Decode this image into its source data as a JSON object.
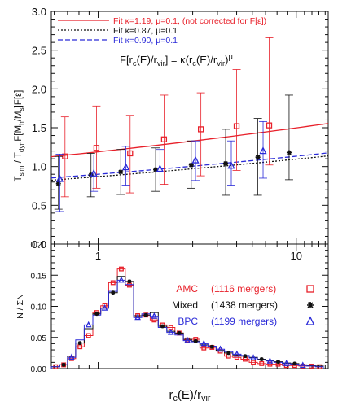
{
  "colors": {
    "red": "#e8202a",
    "black": "#111111",
    "blue": "#2a2ad8",
    "axis": "#111111"
  },
  "chart_data": [
    {
      "type": "scatter",
      "panel": "top",
      "ylabel": "T_sim / T_dyn F[M_h/M_s]F[ε]",
      "xscale": "log",
      "xlim": [
        0.58,
        14.5
      ],
      "ylim": [
        0.0,
        3.0
      ],
      "yticks": [
        "0.0",
        "0.5",
        "1.0",
        "1.5",
        "2.0",
        "2.5",
        "3.0"
      ],
      "xticks": [
        "1",
        "10"
      ],
      "legend": [
        {
          "label": "Fit κ=1.19, μ=0.1, (not corrected for F[ε])",
          "color": "#e8202a",
          "dash": "solid"
        },
        {
          "label": "Fit κ=0.87, μ=0.1",
          "color": "#111111",
          "dash": "dot"
        },
        {
          "label": "Fit κ=0.90, μ=0.1",
          "color": "#2a2ad8",
          "dash": "dash"
        }
      ],
      "annotation": "F[r_c(E)/r_vir] = κ(r_c(E)/r_vir)^μ",
      "fits": [
        {
          "name": "Fit κ=1.19, μ=0.1",
          "kappa": 1.19,
          "mu": 0.1,
          "color": "#e8202a",
          "dash": ""
        },
        {
          "name": "Fit κ=0.87, μ=0.1",
          "kappa": 0.87,
          "mu": 0.1,
          "color": "#111111",
          "dash": "2,2"
        },
        {
          "name": "Fit κ=0.90, μ=0.1",
          "kappa": 0.9,
          "mu": 0.1,
          "color": "#2a2ad8",
          "dash": "6,3"
        }
      ],
      "series": [
        {
          "name": "AMC",
          "color": "#e8202a",
          "marker": "square",
          "points": [
            {
              "x": 0.68,
              "y": 1.13,
              "lo": 0.61,
              "hi": 1.64
            },
            {
              "x": 0.98,
              "y": 1.24,
              "lo": 0.72,
              "hi": 1.78
            },
            {
              "x": 1.45,
              "y": 1.17,
              "lo": 0.66,
              "hi": 1.66
            },
            {
              "x": 2.15,
              "y": 1.35,
              "lo": 0.77,
              "hi": 1.92
            },
            {
              "x": 3.3,
              "y": 1.48,
              "lo": 0.88,
              "hi": 1.95
            },
            {
              "x": 5.0,
              "y": 1.52,
              "lo": 0.95,
              "hi": 2.25
            },
            {
              "x": 7.3,
              "y": 1.53,
              "lo": 1.02,
              "hi": 2.66
            }
          ]
        },
        {
          "name": "Mixed",
          "color": "#111111",
          "marker": "star",
          "points": [
            {
              "x": 0.63,
              "y": 0.78,
              "lo": 0.45,
              "hi": 1.13
            },
            {
              "x": 0.92,
              "y": 0.89,
              "lo": 0.61,
              "hi": 1.17
            },
            {
              "x": 1.3,
              "y": 0.93,
              "lo": 0.64,
              "hi": 1.22
            },
            {
              "x": 1.95,
              "y": 0.96,
              "lo": 0.68,
              "hi": 1.24
            },
            {
              "x": 2.95,
              "y": 1.02,
              "lo": 0.72,
              "hi": 1.33
            },
            {
              "x": 4.4,
              "y": 1.04,
              "lo": 0.63,
              "hi": 1.48
            },
            {
              "x": 6.4,
              "y": 1.12,
              "lo": 0.63,
              "hi": 1.62
            },
            {
              "x": 9.2,
              "y": 1.18,
              "lo": 0.83,
              "hi": 1.92
            }
          ]
        },
        {
          "name": "BPC",
          "color": "#2a2ad8",
          "marker": "triangle",
          "points": [
            {
              "x": 0.64,
              "y": 0.84,
              "lo": 0.42,
              "hi": 1.16
            },
            {
              "x": 0.95,
              "y": 0.91,
              "lo": 0.68,
              "hi": 1.15
            },
            {
              "x": 1.38,
              "y": 0.99,
              "lo": 0.76,
              "hi": 1.26
            },
            {
              "x": 2.05,
              "y": 0.97,
              "lo": 0.75,
              "hi": 1.22
            },
            {
              "x": 3.1,
              "y": 1.08,
              "lo": 0.82,
              "hi": 1.33
            },
            {
              "x": 4.7,
              "y": 1.01,
              "lo": 0.76,
              "hi": 1.33
            },
            {
              "x": 6.8,
              "y": 1.2,
              "lo": 0.85,
              "hi": 1.58
            }
          ]
        }
      ]
    },
    {
      "type": "histogram",
      "panel": "bottom",
      "ylabel": "N / ΣN",
      "xlabel": "r_c(E)/r_vir",
      "xscale": "log",
      "xlim": [
        0.58,
        14.5
      ],
      "ylim": [
        0.0,
        0.2
      ],
      "yticks": [
        "0.00",
        "0.05",
        "0.10",
        "0.15",
        "0.20"
      ],
      "xticks": [
        "1",
        "10"
      ],
      "bin_edges": [
        0.58,
        0.64,
        0.7,
        0.77,
        0.85,
        0.94,
        1.03,
        1.13,
        1.25,
        1.37,
        1.51,
        1.66,
        1.83,
        2.01,
        2.22,
        2.44,
        2.69,
        2.96,
        3.26,
        3.58,
        3.94,
        4.34,
        4.78,
        5.26,
        5.79,
        6.37,
        7.02,
        7.72,
        8.5,
        9.36,
        10.3,
        11.3,
        12.5,
        13.7
      ],
      "series": [
        {
          "name": "AMC",
          "count": "1116 mergers",
          "color": "#e8202a",
          "marker": "square",
          "values": [
            0.003,
            0.006,
            0.016,
            0.035,
            0.053,
            0.09,
            0.101,
            0.138,
            0.16,
            0.134,
            0.085,
            0.086,
            0.078,
            0.07,
            0.066,
            0.057,
            0.046,
            0.047,
            0.033,
            0.034,
            0.028,
            0.02,
            0.018,
            0.015,
            0.01,
            0.008,
            0.007,
            0.007,
            0.005,
            0.005,
            0.004,
            0.004,
            0.003
          ]
        },
        {
          "name": "Mixed",
          "count": "1438 mergers",
          "color": "#111111",
          "marker": "star",
          "values": [
            0.003,
            0.006,
            0.02,
            0.041,
            0.064,
            0.088,
            0.097,
            0.122,
            0.148,
            0.14,
            0.085,
            0.086,
            0.09,
            0.068,
            0.06,
            0.057,
            0.047,
            0.044,
            0.038,
            0.035,
            0.029,
            0.025,
            0.022,
            0.02,
            0.018,
            0.015,
            0.013,
            0.011,
            0.009,
            0.008,
            0.006,
            0.005,
            0.004
          ]
        },
        {
          "name": "BPC",
          "count": "1199 mergers",
          "color": "#2a2ad8",
          "marker": "triangle",
          "values": [
            0.003,
            0.006,
            0.018,
            0.046,
            0.07,
            0.086,
            0.097,
            0.124,
            0.142,
            0.135,
            0.082,
            0.088,
            0.084,
            0.066,
            0.058,
            0.054,
            0.045,
            0.043,
            0.04,
            0.036,
            0.031,
            0.027,
            0.023,
            0.021,
            0.017,
            0.014,
            0.012,
            0.01,
            0.008,
            0.007,
            0.005,
            0.004,
            0.003
          ]
        }
      ]
    }
  ]
}
